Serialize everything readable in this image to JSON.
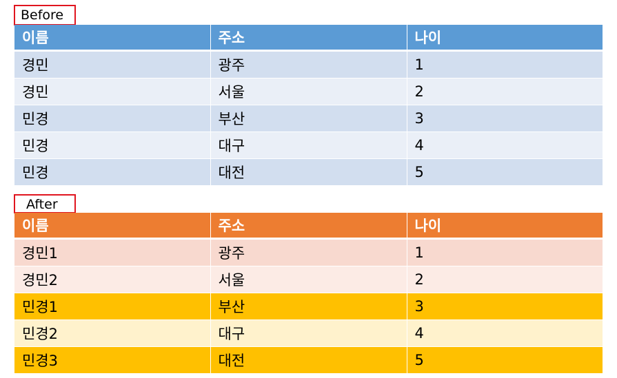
{
  "before": {
    "caption": "Before",
    "headers": [
      "이름",
      "주소",
      "나이"
    ],
    "rows": [
      [
        "경민",
        "광주",
        "1"
      ],
      [
        "경민",
        "서울",
        "2"
      ],
      [
        "민경",
        "부산",
        "3"
      ],
      [
        "민경",
        "대구",
        "4"
      ],
      [
        "민경",
        "대전",
        "5"
      ]
    ],
    "header_color": "#5b9bd5",
    "row_colors": [
      "#d2deef",
      "#eaeff7"
    ]
  },
  "after": {
    "caption": "After",
    "headers": [
      "이름",
      "주소",
      "나이"
    ],
    "rows": [
      [
        "경민1",
        "광주",
        "1"
      ],
      [
        "경민2",
        "서울",
        "2"
      ],
      [
        "민경1",
        "부산",
        "3"
      ],
      [
        "민경2",
        "대구",
        "4"
      ],
      [
        "민경3",
        "대전",
        "5"
      ]
    ],
    "header_color": "#ed7d31",
    "row_colors": [
      "#f8d9cf",
      "#fcebe5",
      "#ffc000",
      "#fff2cc",
      "#ffc000"
    ],
    "caption_border_color": "#e0141e"
  }
}
